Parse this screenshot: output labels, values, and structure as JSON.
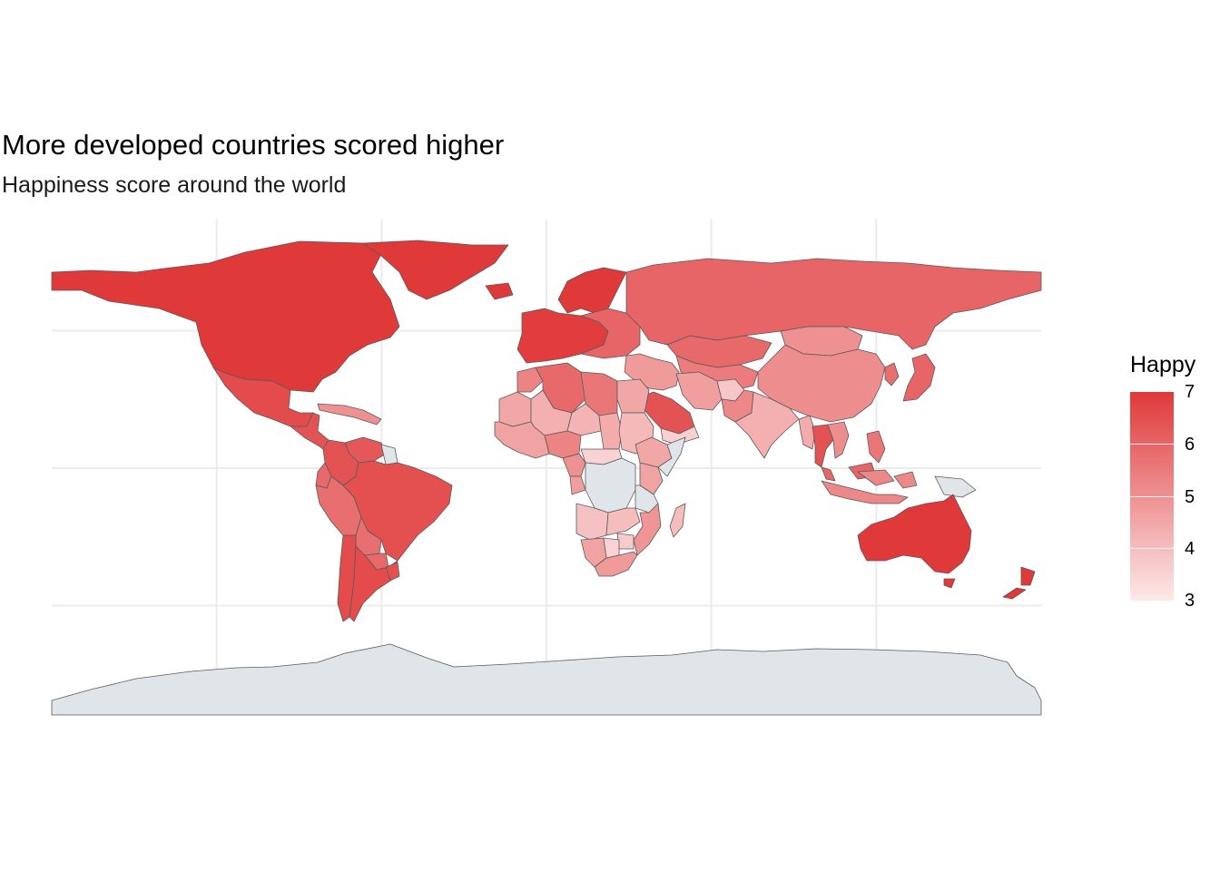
{
  "title": "More developed countries scored higher",
  "subtitle": "Happiness score around the world",
  "legend": {
    "title": "Happy",
    "min": 3,
    "max": 7,
    "breaks": [
      "7",
      "6",
      "5",
      "4",
      "3"
    ],
    "color_low": "#fde9e9",
    "color_high": "#e0393a"
  },
  "colors": {
    "no_data": "#dfe5e9",
    "border": "#5a5a5a",
    "grid": "#ebebeb"
  },
  "regions": [
    {
      "name": "North America",
      "score": 7.0
    },
    {
      "name": "Greenland",
      "score": 7.0
    },
    {
      "name": "Mexico",
      "score": 6.6
    },
    {
      "name": "Central America",
      "score": 6.4
    },
    {
      "name": "Caribbean",
      "score": 5.0
    },
    {
      "name": "Venezuela",
      "score": 6.3
    },
    {
      "name": "Guyana",
      "score": null
    },
    {
      "name": "Colombia",
      "score": 6.4
    },
    {
      "name": "Ecuador",
      "score": 5.9
    },
    {
      "name": "Peru",
      "score": 5.8
    },
    {
      "name": "Brazil",
      "score": 6.5
    },
    {
      "name": "Bolivia",
      "score": 5.8
    },
    {
      "name": "Paraguay",
      "score": 5.9
    },
    {
      "name": "Chile",
      "score": 6.6
    },
    {
      "name": "Argentina",
      "score": 6.6
    },
    {
      "name": "Uruguay",
      "score": 6.5
    },
    {
      "name": "Iceland",
      "score": 7.3
    },
    {
      "name": "Scandinavia",
      "score": 7.2
    },
    {
      "name": "Western Europe",
      "score": 6.9
    },
    {
      "name": "Eastern Europe",
      "score": 6.0
    },
    {
      "name": "Russia",
      "score": 6.0
    },
    {
      "name": "Kazakhstan",
      "score": 5.9
    },
    {
      "name": "Central Asia",
      "score": 5.5
    },
    {
      "name": "Mongolia",
      "score": 5.0
    },
    {
      "name": "China",
      "score": 5.1
    },
    {
      "name": "Middle East",
      "score": 4.8
    },
    {
      "name": "Saudi Arabia",
      "score": 6.4
    },
    {
      "name": "Yemen",
      "score": 3.6
    },
    {
      "name": "Iran",
      "score": 4.7
    },
    {
      "name": "Afghanistan",
      "score": 3.8
    },
    {
      "name": "Pakistan",
      "score": 5.2
    },
    {
      "name": "India",
      "score": 4.3
    },
    {
      "name": "Myanmar",
      "score": 4.4
    },
    {
      "name": "Thailand",
      "score": 6.4
    },
    {
      "name": "Vietnam",
      "score": 5.1
    },
    {
      "name": "Japan",
      "score": 6.0
    },
    {
      "name": "Korea",
      "score": 5.8
    },
    {
      "name": "Philippines",
      "score": 5.6
    },
    {
      "name": "Malaysia",
      "score": 6.0
    },
    {
      "name": "Indonesia",
      "score": 5.2
    },
    {
      "name": "Papua New Guinea",
      "score": null
    },
    {
      "name": "Australia",
      "score": 7.2
    },
    {
      "name": "New Zealand",
      "score": 7.3
    },
    {
      "name": "Morocco",
      "score": 5.3
    },
    {
      "name": "Algeria",
      "score": 5.9
    },
    {
      "name": "Libya",
      "score": 5.6
    },
    {
      "name": "Egypt",
      "score": 4.5
    },
    {
      "name": "Mauritania",
      "score": 4.5
    },
    {
      "name": "Mali",
      "score": 4.3
    },
    {
      "name": "Niger",
      "score": 4.2
    },
    {
      "name": "Chad",
      "score": 4.4
    },
    {
      "name": "Sudan",
      "score": 4.1
    },
    {
      "name": "West Africa Coast",
      "score": 4.6
    },
    {
      "name": "Nigeria",
      "score": 5.3
    },
    {
      "name": "Cameroon",
      "score": 5.0
    },
    {
      "name": "Central African Republic",
      "score": 3.5
    },
    {
      "name": "Ethiopia",
      "score": 4.5
    },
    {
      "name": "Somalia",
      "score": null
    },
    {
      "name": "Gabon",
      "score": 4.7
    },
    {
      "name": "DR Congo",
      "score": null
    },
    {
      "name": "Kenya",
      "score": 4.6
    },
    {
      "name": "Tanzania",
      "score": null
    },
    {
      "name": "Angola",
      "score": 3.9
    },
    {
      "name": "Zambia",
      "score": 4.0
    },
    {
      "name": "Mozambique",
      "score": 4.9
    },
    {
      "name": "Zimbabwe",
      "score": 3.7
    },
    {
      "name": "Namibia",
      "score": 4.6
    },
    {
      "name": "Botswana",
      "score": 3.5
    },
    {
      "name": "South Africa",
      "score": 4.8
    },
    {
      "name": "Madagascar",
      "score": 4.0
    },
    {
      "name": "Antarctica",
      "score": null
    }
  ]
}
